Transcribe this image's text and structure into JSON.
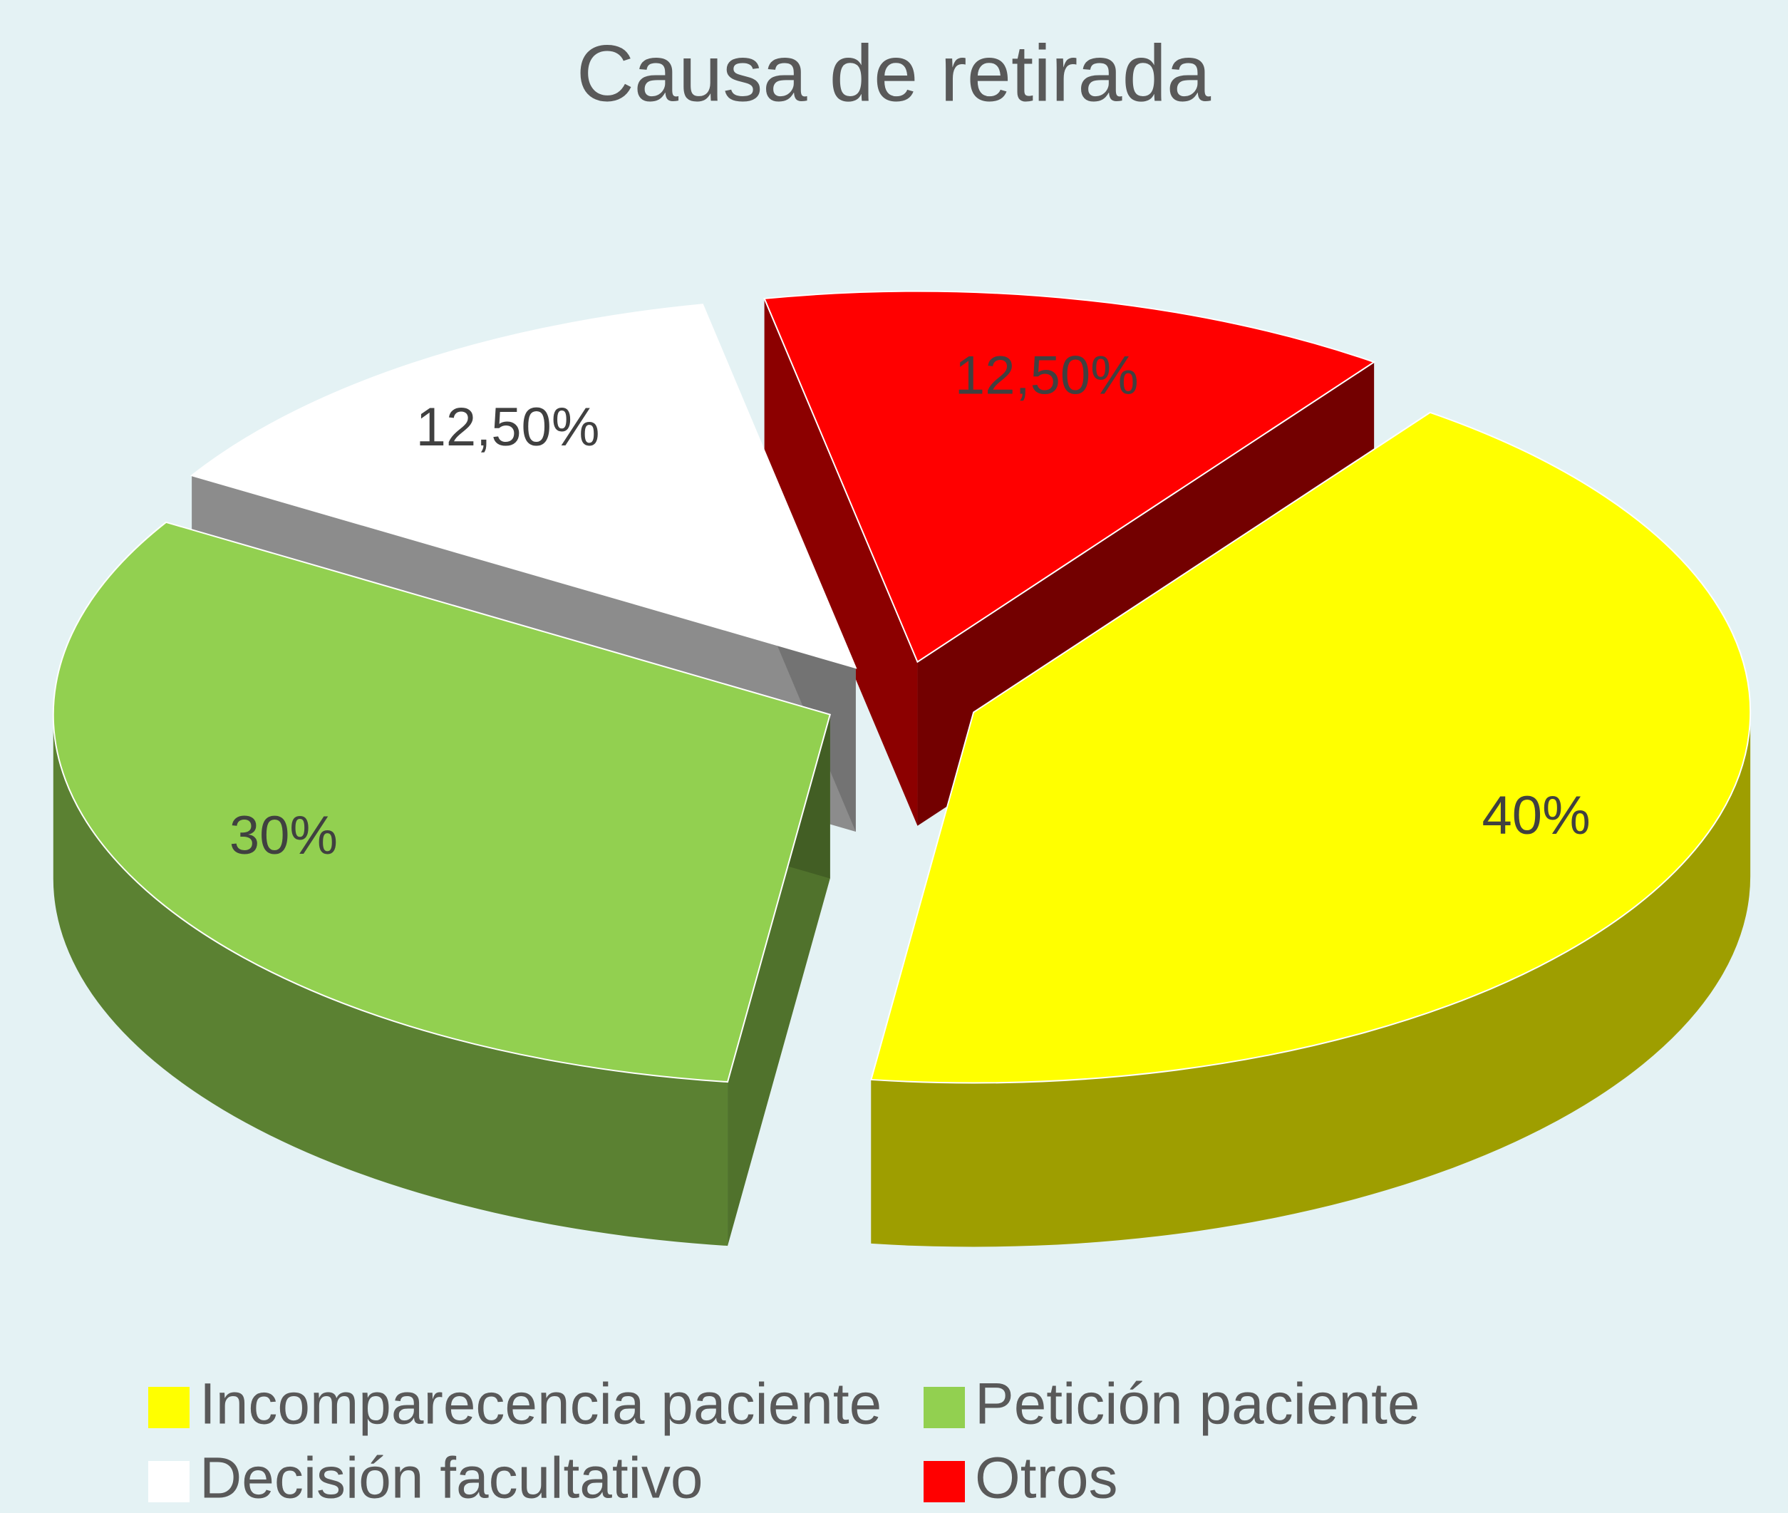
{
  "chart_data": {
    "type": "pie3d",
    "title": "Causa de retirada",
    "categories": [
      "Incomparecencia paciente",
      "Petición paciente",
      "Decisión facultativo",
      "Otros"
    ],
    "values": [
      40,
      30,
      12.5,
      12.5
    ],
    "value_labels": [
      "40%",
      "30%",
      "12,50%",
      "12,50%"
    ],
    "colors": [
      "#ffff00",
      "#92d050",
      "#ffffff",
      "#ff0000"
    ],
    "legend": "bottom"
  }
}
